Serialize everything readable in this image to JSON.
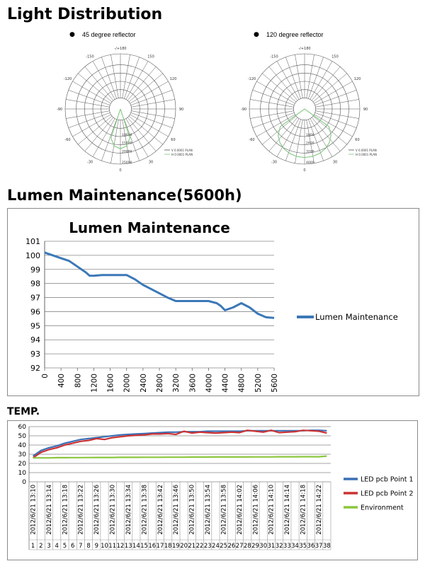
{
  "headings": {
    "light": "Light Distribution",
    "lumen": "Lumen Maintenance(5600h)",
    "temp": "TEMP."
  },
  "polar_charts": [
    {
      "title": "45 degree reflector",
      "angle_labels": [
        "-/+180",
        "150",
        "-150",
        "120",
        "-120",
        "90",
        "-90",
        "60",
        "-60",
        "30",
        "-30",
        "0"
      ],
      "radial_labels": [
        "10000",
        "15000",
        "20000",
        "25000"
      ],
      "legend": [
        "V 0.0001 PLAN",
        "H 0.0001 PLAN"
      ],
      "color": "#7ec87e"
    },
    {
      "title": "120 degree reflector",
      "angle_labels": [
        "-/+180",
        "150",
        "-150",
        "120",
        "-120",
        "90",
        "-90",
        "60",
        "-60",
        "30",
        "-30",
        "0"
      ],
      "radial_labels": [
        "1600",
        "2400",
        "3200",
        "4000"
      ],
      "legend": [
        "V 0.0001 PLAN",
        "H 0.0001 PLAN"
      ],
      "color": "#7ec87e"
    }
  ],
  "chart_data": [
    {
      "type": "line",
      "title": "Lumen Maintenance",
      "xlabel": "",
      "ylabel": "",
      "x_ticks": [
        0,
        400,
        800,
        1200,
        1600,
        2000,
        2400,
        2800,
        3200,
        3600,
        4000,
        4400,
        4800,
        5200,
        5600
      ],
      "ylim": [
        92,
        101
      ],
      "y_ticks": [
        92,
        93,
        94,
        95,
        96,
        97,
        98,
        99,
        100,
        101
      ],
      "grid": true,
      "legend_position": "right",
      "series": [
        {
          "name": "Lumen Maintenance",
          "color": "#3b78b7",
          "x": [
            0,
            200,
            400,
            600,
            800,
            1000,
            1100,
            1200,
            1400,
            1600,
            1800,
            2000,
            2200,
            2400,
            2600,
            2800,
            3000,
            3200,
            3600,
            4000,
            4200,
            4300,
            4400,
            4600,
            4800,
            5000,
            5200,
            5400,
            5600
          ],
          "values": [
            100.2,
            100.0,
            99.8,
            99.6,
            99.2,
            98.8,
            98.55,
            98.55,
            98.6,
            98.6,
            98.6,
            98.6,
            98.3,
            97.9,
            97.6,
            97.3,
            97.0,
            96.75,
            96.75,
            96.75,
            96.6,
            96.4,
            96.1,
            96.3,
            96.6,
            96.3,
            95.85,
            95.6,
            95.55
          ]
        }
      ]
    },
    {
      "type": "line",
      "title": "",
      "xlabel": "",
      "ylabel": "",
      "ylim": [
        0,
        60
      ],
      "y_ticks": [
        0,
        10,
        20,
        30,
        40,
        50,
        60
      ],
      "grid": true,
      "legend_position": "right",
      "date_labels": [
        "2012/6/21 13:10",
        "2012/6/21 13:14",
        "2012/6/21 13:18",
        "2012/6/21 13:22",
        "2012/6/21 13:26",
        "2012/6/21 13:30",
        "2012/6/21 13:34",
        "2012/6/21 13:38",
        "2012/6/21 13:42",
        "2012/6/21 13:46",
        "2012/6/21 13:50",
        "2012/6/21 13:54",
        "2012/6/21 13:58",
        "2012/6/21 14:02",
        "2012/6/21 14:06",
        "2012/6/21 14:10",
        "2012/6/21 14:14",
        "2012/6/21 14:18",
        "2012/6/21 14:22"
      ],
      "categories": [
        "1",
        "2",
        "3",
        "4",
        "5",
        "6",
        "7",
        "8",
        "9",
        "10",
        "11",
        "12",
        "13",
        "14",
        "15",
        "16",
        "17",
        "18",
        "19",
        "20",
        "21",
        "22",
        "23",
        "24",
        "25",
        "26",
        "27",
        "28",
        "29",
        "30",
        "31",
        "32",
        "33",
        "34",
        "35",
        "36",
        "37",
        "38"
      ],
      "series": [
        {
          "name": "LED pcb Point 1",
          "color": "#3b6fb6",
          "values": [
            28,
            34,
            37,
            39,
            42,
            44,
            46,
            47,
            48,
            49,
            50,
            51,
            51.5,
            52,
            52.5,
            53,
            53.5,
            54,
            54,
            54.5,
            54.5,
            54.5,
            55,
            55,
            55,
            55,
            55,
            55.5,
            55.5,
            55.5,
            55.5,
            55.5,
            55.5,
            55.5,
            55.5,
            56,
            56,
            55.5
          ]
        },
        {
          "name": "LED pcb Point 2",
          "color": "#cc3333",
          "values": [
            26,
            32,
            35,
            37,
            40,
            42,
            44,
            45,
            47,
            46,
            48,
            49,
            50,
            50.5,
            51,
            52,
            52,
            52.5,
            51.5,
            55,
            53,
            54,
            53.5,
            53,
            53.5,
            54,
            53.5,
            56,
            55,
            54,
            56,
            53.5,
            54,
            54.5,
            56,
            55.5,
            55,
            53
          ]
        },
        {
          "name": "Environment",
          "color": "#8cc63f",
          "values": [
            26,
            26,
            26,
            26.2,
            26.2,
            26.3,
            26.3,
            26.4,
            26.5,
            26.5,
            26.5,
            26.6,
            26.6,
            26.6,
            26.7,
            26.7,
            26.7,
            26.8,
            26.8,
            26.8,
            26.9,
            26.9,
            26.9,
            27,
            27,
            27,
            27,
            27,
            27.1,
            27.1,
            27.1,
            27.2,
            27.2,
            27.2,
            27.3,
            27.3,
            27.2,
            28
          ]
        }
      ]
    }
  ]
}
